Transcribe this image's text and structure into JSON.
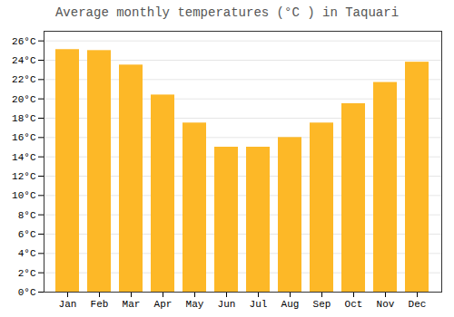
{
  "chart_data": {
    "type": "bar",
    "title": "Average monthly temperatures (°C ) in Taquari",
    "categories": [
      "Jan",
      "Feb",
      "Mar",
      "Apr",
      "May",
      "Jun",
      "Jul",
      "Aug",
      "Sep",
      "Oct",
      "Nov",
      "Dec"
    ],
    "values": [
      25.1,
      25.0,
      23.5,
      20.4,
      17.5,
      15.0,
      15.0,
      16.0,
      17.5,
      19.5,
      21.7,
      23.8
    ],
    "color": "#FDB827",
    "ylim": [
      0,
      27
    ],
    "yticks": [
      {
        "value": 0,
        "label": "0°C"
      },
      {
        "value": 2,
        "label": "2°C"
      },
      {
        "value": 4,
        "label": "4°C"
      },
      {
        "value": 6,
        "label": "6°C"
      },
      {
        "value": 8,
        "label": "8°C"
      },
      {
        "value": 10,
        "label": "10°C"
      },
      {
        "value": 12,
        "label": "12°C"
      },
      {
        "value": 14,
        "label": "14°C"
      },
      {
        "value": 16,
        "label": "16°C"
      },
      {
        "value": 18,
        "label": "18°C"
      },
      {
        "value": 20,
        "label": "20°C"
      },
      {
        "value": 22,
        "label": "22°C"
      },
      {
        "value": 24,
        "label": "24°C"
      },
      {
        "value": 26,
        "label": "26°C"
      }
    ],
    "grid": true
  }
}
